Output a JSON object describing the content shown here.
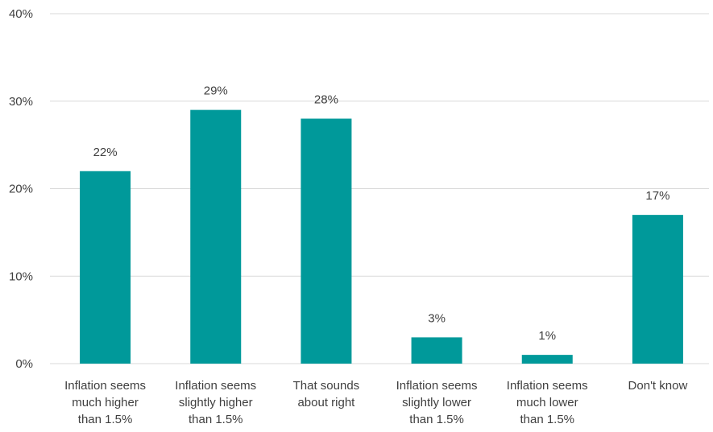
{
  "chart_data": {
    "type": "bar",
    "title": "",
    "xlabel": "",
    "ylabel": "",
    "categories": [
      [
        "Inflation seems",
        "much higher",
        "than 1.5%"
      ],
      [
        "Inflation seems",
        "slightly higher",
        "than 1.5%"
      ],
      [
        "That sounds",
        "about right"
      ],
      [
        "Inflation seems",
        "slightly lower",
        "than 1.5%"
      ],
      [
        "Inflation seems",
        "much lower",
        "than 1.5%"
      ],
      [
        "Don't know"
      ]
    ],
    "values": [
      22,
      29,
      28,
      3,
      1,
      17
    ],
    "data_labels": [
      "22%",
      "29%",
      "28%",
      "3%",
      "1%",
      "17%"
    ],
    "ylim": [
      0,
      40
    ],
    "yticks": [
      0,
      10,
      20,
      30,
      40
    ],
    "ytick_labels": [
      "0%",
      "10%",
      "20%",
      "30%",
      "40%"
    ],
    "grid": true,
    "legend": "none",
    "bar_color": "#00999A",
    "grid_color": "#D9D9D9",
    "text_color": "#404040"
  }
}
